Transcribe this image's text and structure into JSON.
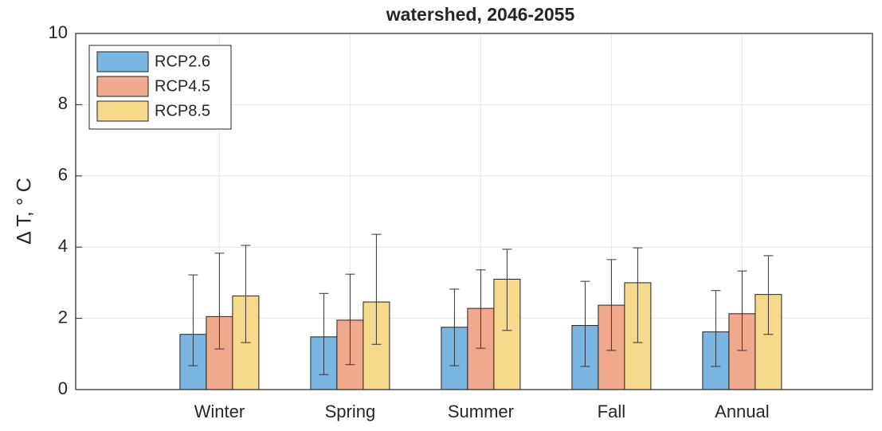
{
  "chart_data": {
    "type": "bar",
    "title": "watershed, 2046-2055",
    "y_label": "Δ T, ° C",
    "categories": [
      "Winter",
      "Spring",
      "Summer",
      "Fall",
      "Annual"
    ],
    "series": [
      {
        "name": "RCP2.6",
        "color": "#7ab6e2",
        "values": [
          1.55,
          1.48,
          1.75,
          1.8,
          1.62
        ],
        "lower": [
          0.67,
          0.42,
          0.67,
          0.65,
          0.65
        ],
        "upper": [
          3.22,
          2.7,
          2.82,
          3.04,
          2.78
        ]
      },
      {
        "name": "RCP4.5",
        "color": "#f0a98c",
        "values": [
          2.05,
          1.95,
          2.28,
          2.37,
          2.13
        ],
        "lower": [
          1.14,
          0.7,
          1.16,
          1.1,
          1.1
        ],
        "upper": [
          3.83,
          3.24,
          3.36,
          3.65,
          3.33
        ]
      },
      {
        "name": "RCP8.5",
        "color": "#f6d98a",
        "values": [
          2.63,
          2.46,
          3.1,
          3.0,
          2.67
        ],
        "lower": [
          1.32,
          1.27,
          1.66,
          1.32,
          1.55
        ],
        "upper": [
          4.05,
          4.36,
          3.94,
          3.98,
          3.76
        ]
      }
    ],
    "ylim": [
      0,
      10
    ],
    "yticks": [
      0,
      2,
      4,
      6,
      8,
      10
    ],
    "grid": true,
    "legend": "upper left"
  }
}
